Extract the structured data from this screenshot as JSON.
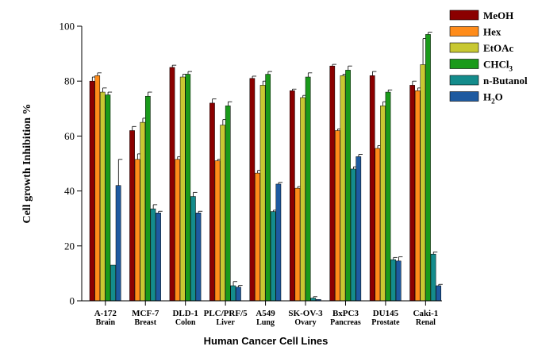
{
  "chart_data": {
    "type": "bar",
    "title": "",
    "xlabel": "Human Cancer Cell Lines",
    "ylabel": "Cell growth Inhibition %",
    "ylim": [
      0,
      100
    ],
    "yticks": [
      0,
      20,
      40,
      60,
      80,
      100
    ],
    "grid": false,
    "legend_position": "right",
    "categories": [
      {
        "name": "A-172",
        "sub": "Brain"
      },
      {
        "name": "MCF-7",
        "sub": "Breast"
      },
      {
        "name": "DLD-1",
        "sub": "Colon"
      },
      {
        "name": "PLC/PRF/5",
        "sub": "Liver"
      },
      {
        "name": "A549",
        "sub": "Lung"
      },
      {
        "name": "SK-OV-3",
        "sub": "Ovary"
      },
      {
        "name": "BxPC3",
        "sub": "Pancreas"
      },
      {
        "name": "DU145",
        "sub": "Prostate"
      },
      {
        "name": "Caki-1",
        "sub": "Renal"
      }
    ],
    "series": [
      {
        "name": "MeOH",
        "color": "#8b0000",
        "values": [
          80,
          62,
          85,
          72,
          81,
          76.5,
          85.5,
          82,
          78.5
        ],
        "errors": [
          1.5,
          1.5,
          0.8,
          1.5,
          0.8,
          0.6,
          0.6,
          1.5,
          1.5
        ]
      },
      {
        "name": "Hex",
        "color": "#ff8c1a",
        "values": [
          82,
          51.5,
          51.5,
          51,
          46.5,
          41,
          62,
          55.5,
          76.5
        ],
        "errors": [
          1,
          2,
          1,
          0.5,
          1,
          0.6,
          0.6,
          1,
          1
        ]
      },
      {
        "name": "EtOAc",
        "color": "#c8c832",
        "values": [
          76,
          65,
          81.5,
          64,
          78.5,
          74,
          82,
          71,
          86
        ],
        "errors": [
          1.5,
          1.5,
          1,
          2,
          1.5,
          0.8,
          0.5,
          1.5,
          9.5
        ]
      },
      {
        "name": "CHCl3",
        "name_formula": {
          "base": "CHCl",
          "sub": "3"
        },
        "color": "#1a9a1a",
        "values": [
          75,
          74.5,
          82.5,
          71,
          82.5,
          81.5,
          84,
          76,
          97
        ],
        "errors": [
          1,
          1.5,
          1,
          1.5,
          1,
          1.5,
          1.5,
          0.8,
          0.8
        ]
      },
      {
        "name": "n-Butanol",
        "color": "#148c8c",
        "values": [
          13,
          33.5,
          38,
          5.5,
          32.5,
          1,
          48,
          15,
          17
        ],
        "errors": [
          0,
          1.5,
          1.5,
          1.5,
          0.5,
          0.5,
          0.8,
          0.8,
          0.8
        ]
      },
      {
        "name": "H2O",
        "name_formula": {
          "base": "H",
          "sub": "2",
          "tail": "O"
        },
        "color": "#1e5aa0",
        "values": [
          42,
          32,
          32,
          5,
          42.5,
          0.5,
          52.5,
          14.5,
          5.5
        ],
        "errors": [
          9.5,
          0.6,
          0.6,
          0.6,
          0.6,
          0,
          0.8,
          1.5,
          0.5
        ]
      }
    ]
  }
}
